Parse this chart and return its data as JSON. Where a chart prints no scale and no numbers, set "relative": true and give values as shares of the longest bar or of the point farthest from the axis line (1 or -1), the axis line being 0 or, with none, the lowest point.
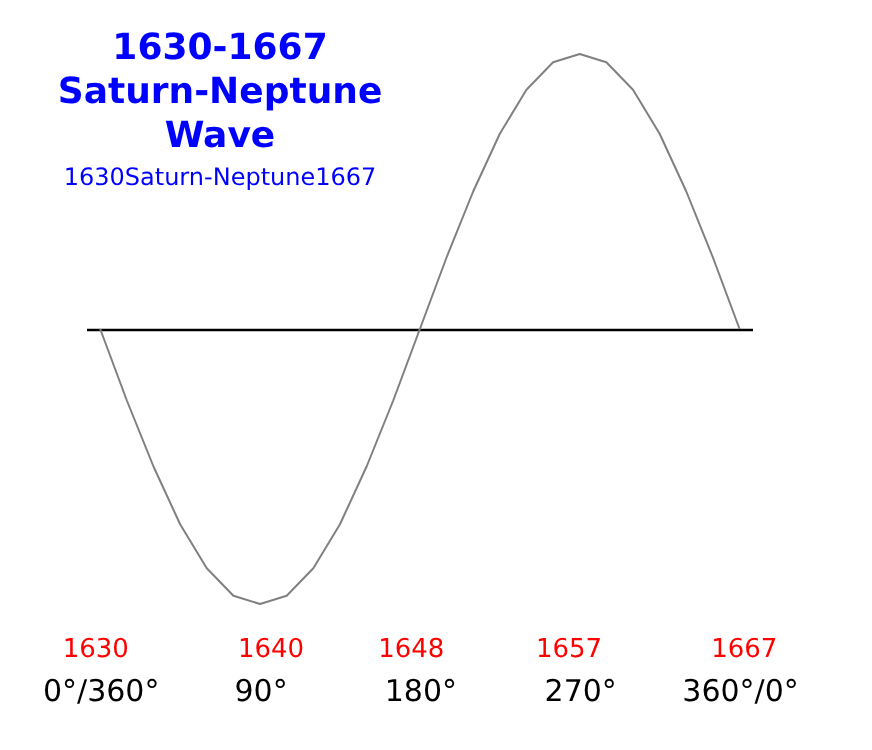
{
  "chart_data": {
    "type": "line",
    "title": "1630-1667 Saturn-Neptune Wave",
    "subtitle": "1630Saturn-Neptune1667",
    "relative": true,
    "x": [
      0,
      15,
      30,
      45,
      60,
      75,
      90,
      105,
      120,
      135,
      150,
      165,
      180,
      195,
      210,
      225,
      240,
      255,
      270,
      285,
      300,
      315,
      330,
      345,
      360
    ],
    "series": [
      {
        "color": "#808080",
        "values": [
          0,
          -0.26,
          -0.5,
          -0.71,
          -0.87,
          -0.97,
          -1,
          -0.97,
          -0.87,
          -0.71,
          -0.5,
          -0.26,
          0,
          0.26,
          0.5,
          0.71,
          0.87,
          0.97,
          1,
          0.97,
          0.87,
          0.71,
          0.5,
          0.26,
          0
        ]
      }
    ],
    "xlim": [
      -8,
      367
    ],
    "xticks": [
      {
        "value": 0,
        "label": "0°/360°"
      },
      {
        "value": 90,
        "label": "90°"
      },
      {
        "value": 180,
        "label": "180°"
      },
      {
        "value": 270,
        "label": "270°"
      },
      {
        "value": 360,
        "label": "360°/0°"
      }
    ],
    "x2lim": [
      1629.5,
      1667.5
    ],
    "x2ticks": [
      1630,
      1640,
      1648,
      1657,
      1667
    ],
    "grid": false,
    "marker": "none",
    "line_style": "solid"
  }
}
